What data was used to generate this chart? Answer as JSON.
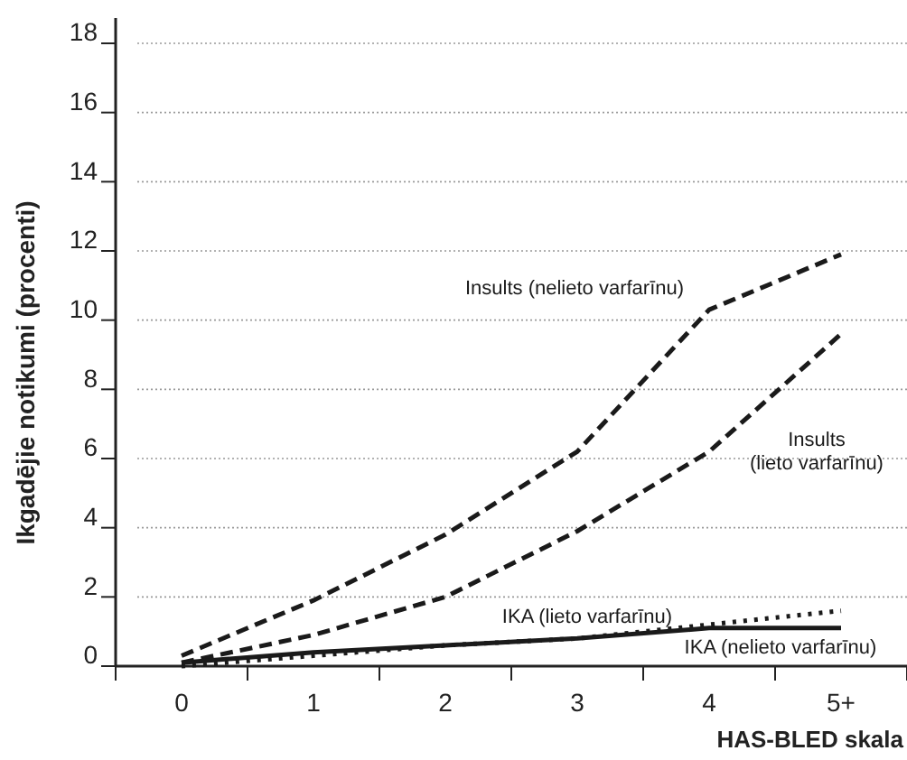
{
  "chart_data": {
    "type": "line",
    "xlabel": "HAS-BLED skala",
    "ylabel": "Ikgadējie notikumi (procenti)",
    "categories": [
      "0",
      "1",
      "2",
      "3",
      "4",
      "5+"
    ],
    "series": [
      {
        "name": "Insults (nelieto varfarīnu)",
        "color": "#1a1a1a",
        "line_style": "dashed",
        "values": [
          0.3,
          1.9,
          3.8,
          6.2,
          10.3,
          11.9
        ]
      },
      {
        "name": "Insults (lieto varfarīnu)",
        "color": "#1a1a1a",
        "line_style": "dashed",
        "values": [
          0.1,
          0.9,
          2.0,
          3.9,
          6.2,
          9.6
        ]
      },
      {
        "name": "IKA (lieto varfarīnu)",
        "color": "#1a1a1a",
        "line_style": "dotted",
        "values": [
          0.0,
          0.3,
          0.6,
          0.8,
          1.2,
          1.6
        ]
      },
      {
        "name": "IKA (nelieto varfarīnu)",
        "color": "#1a1a1a",
        "line_style": "solid",
        "values": [
          0.1,
          0.4,
          0.6,
          0.8,
          1.1,
          1.1
        ]
      }
    ],
    "ylim": [
      0,
      18
    ],
    "yticks": [
      0,
      2,
      4,
      6,
      8,
      10,
      12,
      14,
      16,
      18
    ],
    "grid": "y",
    "marker": "none"
  }
}
